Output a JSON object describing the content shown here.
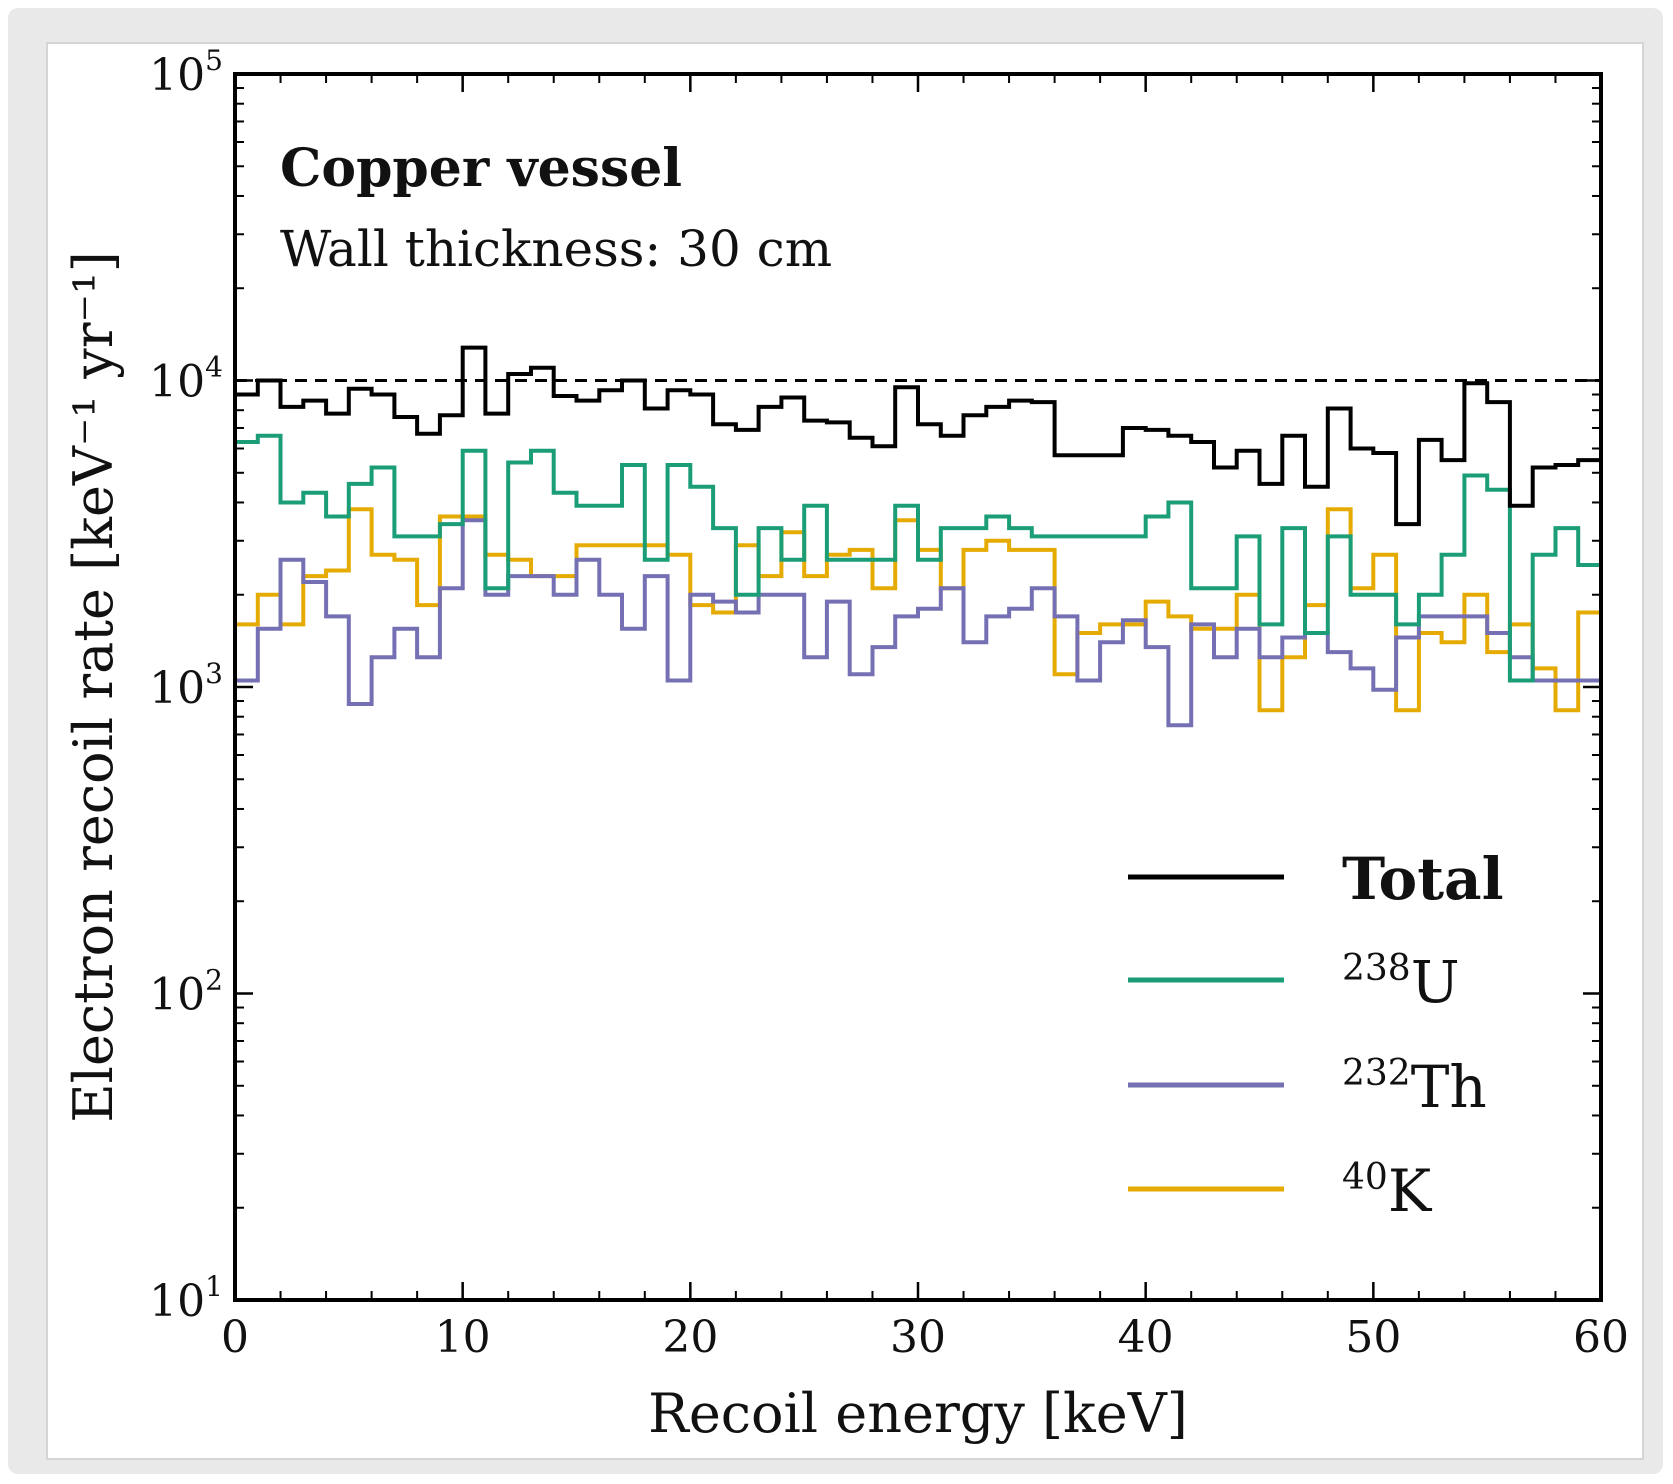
{
  "chart_data": {
    "type": "line",
    "step": true,
    "title": "Copper vessel",
    "subtitle": "Wall thickness: 30 cm",
    "xlabel": "Recoil energy [keV]",
    "ylabel": "Electron recoil rate [keV⁻¹ yr⁻¹]",
    "xlim": [
      0,
      60
    ],
    "ylim": [
      10,
      100000
    ],
    "yscale": "log",
    "grid": false,
    "legend_position": "bottom-right",
    "x_ticks": [
      "0",
      "10",
      "20",
      "30",
      "40",
      "50",
      "60"
    ],
    "y_ticks": [
      {
        "base": "10",
        "exp": "1"
      },
      {
        "base": "10",
        "exp": "2"
      },
      {
        "base": "10",
        "exp": "3"
      },
      {
        "base": "10",
        "exp": "4"
      },
      {
        "base": "10",
        "exp": "5"
      }
    ],
    "reference_line": {
      "y": 10000,
      "style": "dashed",
      "color": "#000000"
    },
    "bin_width": 1,
    "series": [
      {
        "name": "Total",
        "name_bold": true,
        "color": "#000000",
        "values": [
          9000,
          10000,
          8200,
          8600,
          7800,
          9400,
          9000,
          7600,
          6700,
          7700,
          12800,
          7800,
          10500,
          11000,
          8900,
          8600,
          9300,
          10000,
          8100,
          9300,
          9000,
          7200,
          6900,
          8200,
          8800,
          7400,
          7300,
          6500,
          6100,
          9500,
          7200,
          6600,
          7700,
          8200,
          8600,
          8500,
          5700,
          5700,
          5700,
          7000,
          6900,
          6600,
          6300,
          5200,
          5900,
          4600,
          6600,
          4500,
          8100,
          6000,
          5800,
          3400,
          6400,
          5500,
          9800,
          8500,
          3900,
          5200,
          5300,
          5500
        ]
      },
      {
        "name": "U",
        "mass_number": "238",
        "color": "#1b9e77",
        "values": [
          6300,
          6600,
          4000,
          4300,
          3600,
          4600,
          5200,
          3100,
          3100,
          3400,
          5900,
          2100,
          5400,
          5900,
          4300,
          3900,
          3900,
          5300,
          2600,
          5300,
          4500,
          3300,
          2000,
          3300,
          2600,
          3900,
          2600,
          2600,
          2600,
          3900,
          2600,
          3300,
          3300,
          3600,
          3300,
          3100,
          3100,
          3100,
          3100,
          3100,
          3600,
          4000,
          2100,
          2100,
          3100,
          1600,
          3300,
          1500,
          3100,
          2000,
          2000,
          1600,
          2000,
          2700,
          4900,
          4400,
          1050,
          2700,
          3300,
          2500
        ]
      },
      {
        "name": "Th",
        "mass_number": "232",
        "color": "#7570b3",
        "values": [
          1050,
          1550,
          2600,
          2200,
          1700,
          880,
          1250,
          1550,
          1250,
          2100,
          3500,
          2000,
          2300,
          2300,
          2000,
          2600,
          2000,
          1550,
          2300,
          1050,
          2000,
          1900,
          1750,
          2000,
          2000,
          1250,
          1900,
          1100,
          1350,
          1700,
          1800,
          2100,
          1400,
          1700,
          1800,
          2100,
          1700,
          1050,
          1400,
          1650,
          1350,
          750,
          1600,
          1250,
          1550,
          1250,
          1450,
          1500,
          1300,
          1150,
          980,
          1450,
          1700,
          1700,
          1700,
          1500,
          1250,
          1050,
          1050,
          1050
        ]
      },
      {
        "name": "K",
        "mass_number": "40",
        "color": "#e6ab02",
        "values": [
          1600,
          2000,
          1600,
          2300,
          2400,
          3800,
          2700,
          2600,
          1850,
          3600,
          3600,
          2700,
          2600,
          2300,
          2300,
          2900,
          2900,
          2900,
          2900,
          2700,
          1850,
          1750,
          2900,
          2300,
          3200,
          2300,
          2700,
          2800,
          2100,
          3500,
          2800,
          2100,
          2800,
          3000,
          2800,
          2800,
          1100,
          1500,
          1600,
          1600,
          1900,
          1700,
          1550,
          1550,
          2000,
          840,
          1250,
          1850,
          3800,
          2100,
          2700,
          840,
          1500,
          1400,
          2000,
          1300,
          1600,
          1150,
          840,
          1750
        ]
      }
    ]
  }
}
